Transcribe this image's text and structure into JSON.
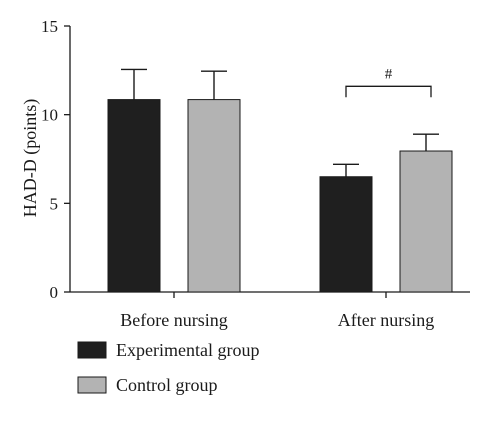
{
  "chart_data": {
    "type": "bar",
    "title": "",
    "xlabel": "",
    "ylabel": "HAD-D (points)",
    "categories": [
      "Before nursing",
      "After nursing"
    ],
    "ylim": [
      0,
      15
    ],
    "yticks": [
      0,
      5,
      10,
      15
    ],
    "grid": false,
    "legend_position": "bottom-left",
    "series": [
      {
        "name": "Experimental group",
        "color": "#1f1f1f",
        "values": [
          10.85,
          6.5
        ],
        "errors": [
          1.7,
          0.7
        ]
      },
      {
        "name": "Control group",
        "color": "#b3b3b3",
        "values": [
          10.85,
          7.95
        ],
        "errors": [
          1.6,
          0.95
        ]
      }
    ],
    "annotations": [
      {
        "category": "After nursing",
        "text": "#",
        "y": 11.6
      }
    ]
  }
}
